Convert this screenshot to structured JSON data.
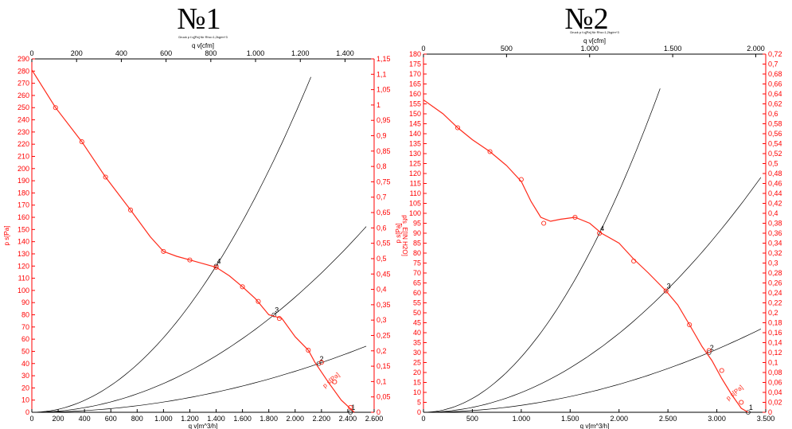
{
  "page": {
    "titles": [
      "№1",
      "№2"
    ]
  },
  "colors": {
    "fan_curve": "#ff2a1a",
    "axis_red": "#ff0000",
    "system_curve": "#000000",
    "axis_black": "#000000"
  },
  "chart_data": [
    {
      "type": "line",
      "title": "№1",
      "note": "Druck p f.q[Pa] für Rho=1,2kg/m^3",
      "xlabel": "q v[m^3/h]",
      "x2label": "q v[cfm]",
      "ylabel": "p s[Pa]",
      "y2label": "pfs_E[IN H2O]",
      "xlim": [
        0,
        2600
      ],
      "ylim": [
        0,
        290
      ],
      "x_ticks": [
        "0",
        "200",
        "400",
        "600",
        "800",
        "1.000",
        "1.200",
        "1.400",
        "1.600",
        "1.800",
        "2.000",
        "2.200",
        "2.400",
        "2.600"
      ],
      "y_ticks": [
        "0",
        "10",
        "20",
        "30",
        "40",
        "50",
        "60",
        "70",
        "80",
        "90",
        "100",
        "110",
        "120",
        "130",
        "140",
        "150",
        "160",
        "170",
        "180",
        "190",
        "200",
        "210",
        "220",
        "230",
        "240",
        "250",
        "260",
        "270",
        "280",
        "290"
      ],
      "x2_ticks": [
        "0",
        "200",
        "400",
        "600",
        "800",
        "1.000",
        "1.200",
        "1.400"
      ],
      "y2_ticks": [
        "0",
        "0,05",
        "0,1",
        "0,15",
        "0,2",
        "0,25",
        "0,3",
        "0,35",
        "0,4",
        "0,45",
        "0,5",
        "0,55",
        "0,6",
        "0,65",
        "0,7",
        "0,75",
        "0,8",
        "0,85",
        "0,9",
        "0,95",
        "1",
        "1,05",
        "1,1",
        "1,15"
      ],
      "series": [
        {
          "points": [
            [
              0,
              281
            ],
            [
              180,
              250
            ],
            [
              380,
              222
            ],
            [
              560,
              193
            ],
            [
              750,
              166
            ],
            [
              900,
              144
            ],
            [
              1000,
              132
            ],
            [
              1100,
              128
            ],
            [
              1200,
              125
            ],
            [
              1300,
              122
            ],
            [
              1400,
              119
            ],
            [
              1500,
              112
            ],
            [
              1600,
              103
            ],
            [
              1700,
              93
            ],
            [
              1800,
              80
            ],
            [
              1900,
              77
            ],
            [
              2000,
              62
            ],
            [
              2100,
              51
            ],
            [
              2150,
              41
            ],
            [
              2250,
              25
            ],
            [
              2350,
              10
            ],
            [
              2450,
              0
            ]
          ],
          "markers": [
            [
              180,
              250
            ],
            [
              380,
              222
            ],
            [
              560,
              193
            ],
            [
              750,
              166
            ],
            [
              1000,
              132
            ],
            [
              1200,
              125
            ],
            [
              1400,
              119
            ],
            [
              1600,
              103
            ],
            [
              1720,
              91
            ],
            [
              1880,
              77
            ],
            [
              2100,
              51
            ],
            [
              2200,
              41
            ],
            [
              2300,
              25
            ],
            [
              2420,
              4
            ]
          ]
        }
      ],
      "system_curves": [
        {
          "label": "4",
          "point": [
            1400,
            120
          ],
          "x_end": 2120
        },
        {
          "label": "3",
          "point": [
            1840,
            80
          ],
          "x_end": 2540
        },
        {
          "label": "2",
          "point": [
            2180,
            40
          ],
          "x_end": 2540
        },
        {
          "label": "1",
          "point": [
            2420,
            0
          ],
          "x_end": 2540
        }
      ],
      "curve_label": "p s[Pa]"
    },
    {
      "type": "line",
      "title": "№2",
      "note": "Druck p f.q[Pa] für Rho=1,2kg/m^3",
      "xlabel": "q v[m^3/h]",
      "x2label": "q v[cfm]",
      "ylabel": "p s[Pa]",
      "y2label": "pfs_E[IN H2O]",
      "xlim": [
        0,
        3500
      ],
      "ylim": [
        0,
        180
      ],
      "x_ticks": [
        "0",
        "500",
        "1.000",
        "1.500",
        "2.000",
        "2.500",
        "3.000",
        "3.500"
      ],
      "y_ticks": [
        "0",
        "5",
        "10",
        "15",
        "20",
        "25",
        "30",
        "35",
        "40",
        "45",
        "50",
        "55",
        "60",
        "65",
        "70",
        "75",
        "80",
        "85",
        "90",
        "95",
        "100",
        "105",
        "110",
        "115",
        "120",
        "125",
        "130",
        "135",
        "140",
        "145",
        "150",
        "155",
        "160",
        "165",
        "170",
        "175",
        "180"
      ],
      "x2_ticks": [
        "0",
        "500",
        "1.000",
        "1.500",
        "2.000"
      ],
      "y2_ticks": [
        "0",
        "0,02",
        "0,04",
        "0,06",
        "0,08",
        "0,1",
        "0,12",
        "0,14",
        "0,16",
        "0,18",
        "0,2",
        "0,22",
        "0,24",
        "0,26",
        "0,28",
        "0,3",
        "0,32",
        "0,34",
        "0,36",
        "0,38",
        "0,4",
        "0,42",
        "0,44",
        "0,46",
        "0,48",
        "0,5",
        "0,52",
        "0,54",
        "0,56",
        "0,58",
        "0,6",
        "0,62",
        "0,64",
        "0,66",
        "0,68",
        "0,7",
        "0,72"
      ],
      "series": [
        {
          "points": [
            [
              0,
              157
            ],
            [
              200,
              150
            ],
            [
              350,
              143
            ],
            [
              500,
              137
            ],
            [
              680,
              131
            ],
            [
              850,
              124
            ],
            [
              1000,
              116
            ],
            [
              1100,
              106
            ],
            [
              1200,
              98
            ],
            [
              1300,
              96
            ],
            [
              1400,
              97
            ],
            [
              1550,
              98
            ],
            [
              1700,
              95
            ],
            [
              1820,
              90
            ],
            [
              2000,
              85
            ],
            [
              2150,
              77
            ],
            [
              2300,
              70
            ],
            [
              2480,
              61
            ],
            [
              2600,
              54
            ],
            [
              2720,
              44
            ],
            [
              2850,
              33
            ],
            [
              2950,
              26
            ],
            [
              3050,
              17
            ],
            [
              3150,
              9
            ],
            [
              3250,
              2
            ],
            [
              3320,
              0
            ]
          ],
          "markers": [
            [
              350,
              143
            ],
            [
              680,
              131
            ],
            [
              1000,
              117
            ],
            [
              1230,
              95
            ],
            [
              1550,
              98
            ],
            [
              1800,
              90
            ],
            [
              2150,
              76
            ],
            [
              2480,
              61
            ],
            [
              2720,
              44
            ],
            [
              2920,
              31
            ],
            [
              3050,
              21
            ],
            [
              3250,
              5
            ]
          ]
        }
      ],
      "system_curves": [
        {
          "label": "4",
          "point": [
            1800,
            90
          ],
          "x_end": 2420
        },
        {
          "label": "3",
          "point": [
            2480,
            61
          ],
          "x_end": 3450
        },
        {
          "label": "2",
          "point": [
            2920,
            30
          ],
          "x_end": 3450
        },
        {
          "label": "1",
          "point": [
            3320,
            0
          ],
          "x_end": 3450
        }
      ],
      "curve_label": "p s[Pa]"
    }
  ]
}
